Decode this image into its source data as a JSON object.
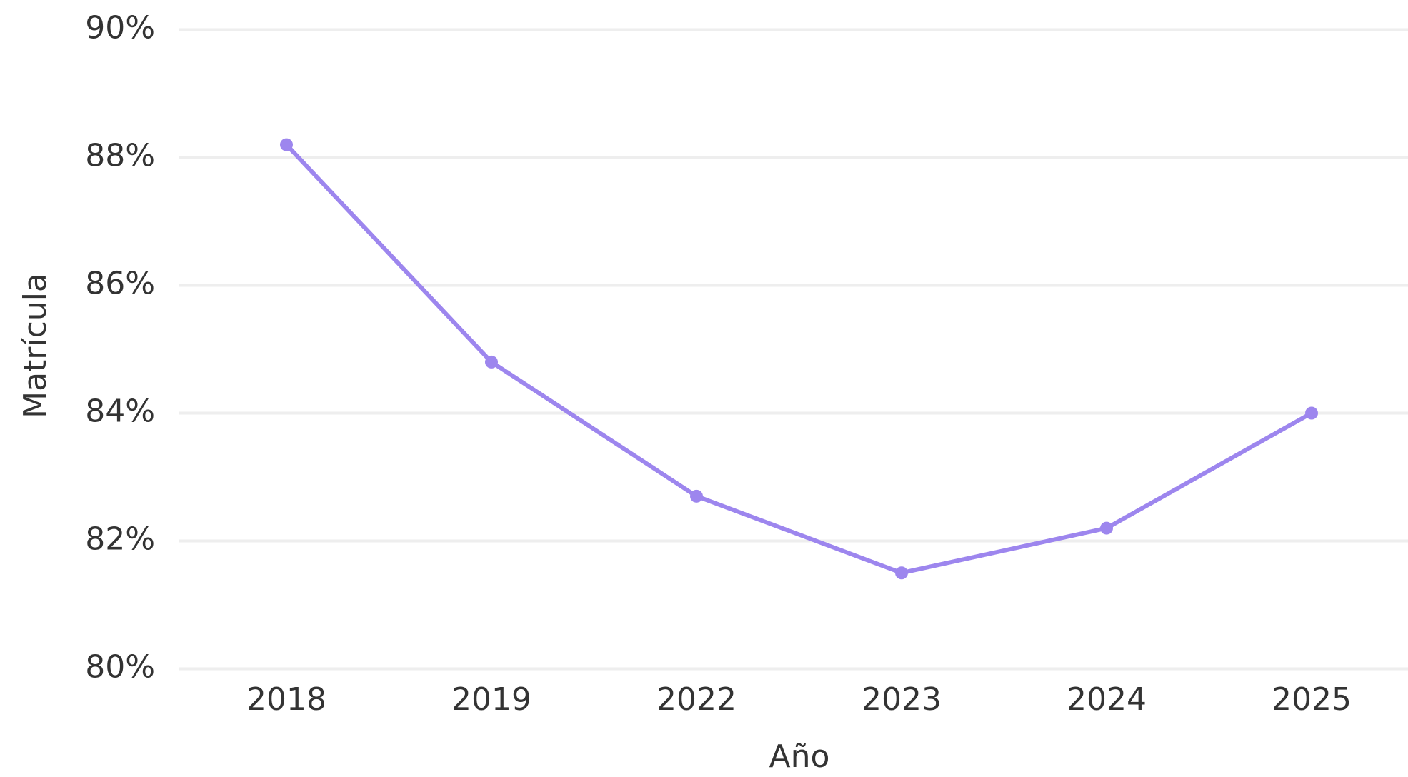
{
  "chart_data": {
    "type": "line",
    "x_label": "Año",
    "y_label": "Matrícula",
    "categories": [
      "2018",
      "2019",
      "2022",
      "2023",
      "2024",
      "2025"
    ],
    "series": [
      {
        "name": "Matrícula",
        "color": "#9d86ee",
        "values": [
          88.2,
          84.8,
          82.7,
          81.5,
          82.2,
          84.0
        ]
      }
    ],
    "ylim": [
      80,
      90
    ],
    "yticks": [
      {
        "value": 80,
        "label": "80%"
      },
      {
        "value": 82,
        "label": "82%"
      },
      {
        "value": 84,
        "label": "84%"
      },
      {
        "value": 86,
        "label": "86%"
      },
      {
        "value": 88,
        "label": "88%"
      },
      {
        "value": 90,
        "label": "90%"
      }
    ],
    "grid": true
  }
}
